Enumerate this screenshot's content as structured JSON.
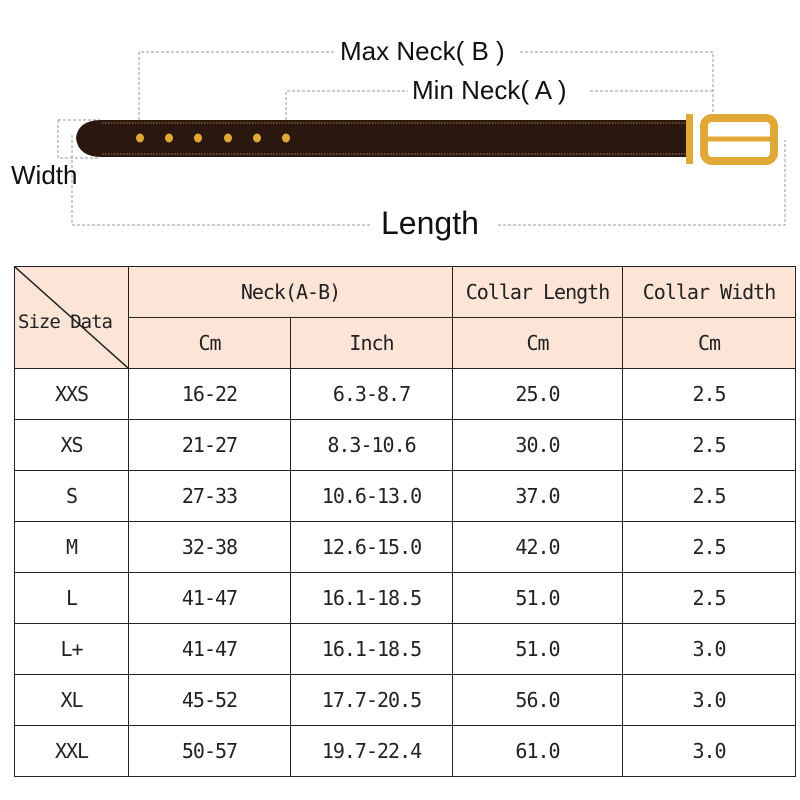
{
  "diagram": {
    "max_neck_label": "Max Neck( B )",
    "min_neck_label": "Min Neck( A )",
    "width_label": "Width",
    "length_label": "Length",
    "colors": {
      "strap": "#2a1710",
      "buckle": "#e0a935",
      "holes": "#e0a935"
    }
  },
  "table": {
    "corner_label": "Size Data",
    "headers": {
      "neck": "Neck(A-B)",
      "collar_length": "Collar Length",
      "collar_width": "Collar Width"
    },
    "units": [
      "Cm",
      "Inch",
      "Cm",
      "Cm"
    ],
    "header_bg": "#fce4d6",
    "rows": [
      {
        "size": "XXS",
        "neck_cm": "16-22",
        "neck_inch": "6.3-8.7",
        "length_cm": "25.0",
        "width_cm": "2.5"
      },
      {
        "size": "XS",
        "neck_cm": "21-27",
        "neck_inch": "8.3-10.6",
        "length_cm": "30.0",
        "width_cm": "2.5"
      },
      {
        "size": "S",
        "neck_cm": "27-33",
        "neck_inch": "10.6-13.0",
        "length_cm": "37.0",
        "width_cm": "2.5"
      },
      {
        "size": "M",
        "neck_cm": "32-38",
        "neck_inch": "12.6-15.0",
        "length_cm": "42.0",
        "width_cm": "2.5"
      },
      {
        "size": "L",
        "neck_cm": "41-47",
        "neck_inch": "16.1-18.5",
        "length_cm": "51.0",
        "width_cm": "2.5"
      },
      {
        "size": "L+",
        "neck_cm": "41-47",
        "neck_inch": "16.1-18.5",
        "length_cm": "51.0",
        "width_cm": "3.0"
      },
      {
        "size": "XL",
        "neck_cm": "45-52",
        "neck_inch": "17.7-20.5",
        "length_cm": "56.0",
        "width_cm": "3.0"
      },
      {
        "size": "XXL",
        "neck_cm": "50-57",
        "neck_inch": "19.7-22.4",
        "length_cm": "61.0",
        "width_cm": "3.0"
      }
    ]
  }
}
